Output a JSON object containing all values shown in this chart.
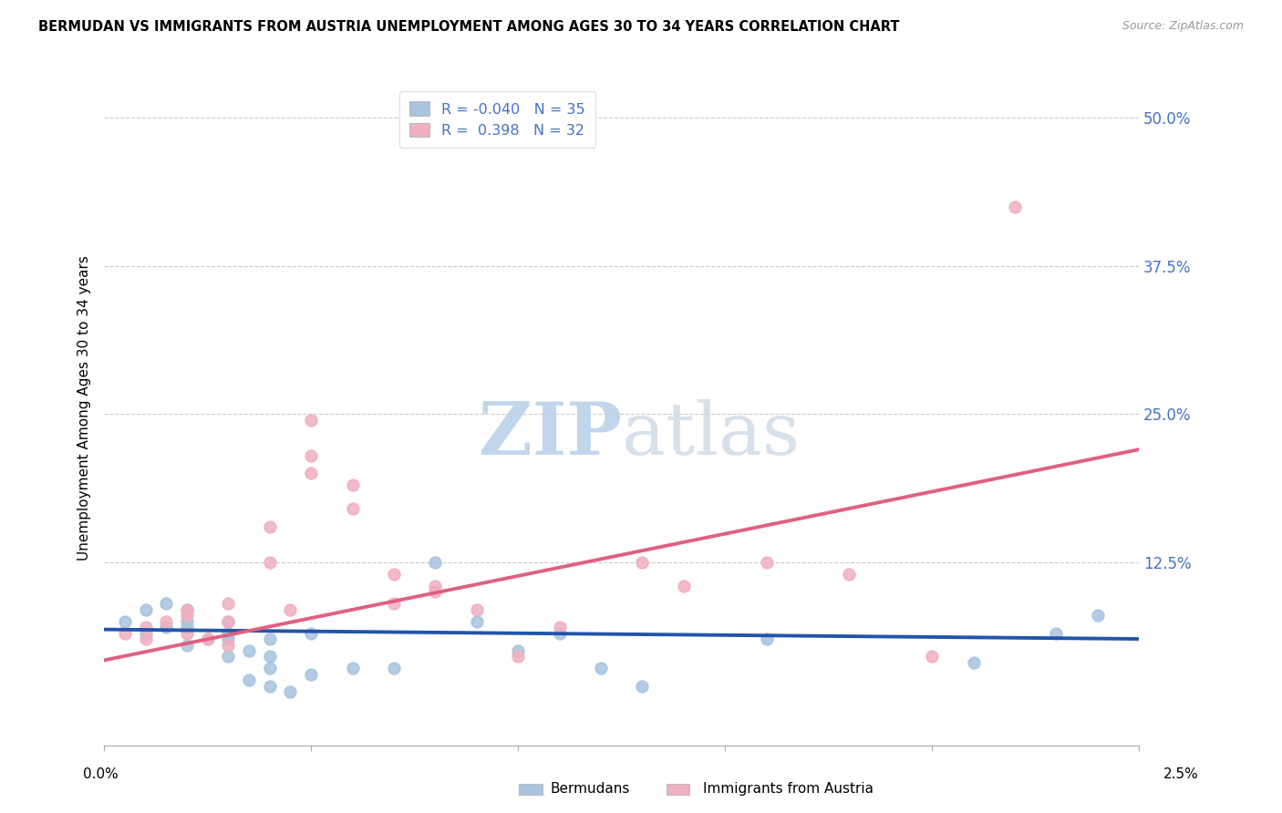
{
  "title": "BERMUDAN VS IMMIGRANTS FROM AUSTRIA UNEMPLOYMENT AMONG AGES 30 TO 34 YEARS CORRELATION CHART",
  "source": "Source: ZipAtlas.com",
  "ylabel": "Unemployment Among Ages 30 to 34 years",
  "ytick_labels": [
    "12.5%",
    "25.0%",
    "37.5%",
    "50.0%"
  ],
  "ytick_values": [
    0.125,
    0.25,
    0.375,
    0.5
  ],
  "xmin": 0.0,
  "xmax": 0.025,
  "ymin": -0.03,
  "ymax": 0.54,
  "bermuda_color": "#a8c4e0",
  "austria_color": "#f0b0c0",
  "bermuda_line_color": "#2255aa",
  "austria_line_color": "#e06080",
  "watermark_color": "#d0dff0",
  "blue_scatter_x": [
    0.0005,
    0.001,
    0.001,
    0.0015,
    0.0015,
    0.002,
    0.002,
    0.002,
    0.002,
    0.0025,
    0.003,
    0.003,
    0.003,
    0.003,
    0.0035,
    0.0035,
    0.004,
    0.004,
    0.004,
    0.004,
    0.0045,
    0.005,
    0.005,
    0.006,
    0.007,
    0.008,
    0.009,
    0.01,
    0.011,
    0.012,
    0.013,
    0.016,
    0.021,
    0.023,
    0.024
  ],
  "blue_scatter_y": [
    0.075,
    0.065,
    0.085,
    0.07,
    0.09,
    0.07,
    0.075,
    0.085,
    0.055,
    0.06,
    0.065,
    0.075,
    0.06,
    0.045,
    0.025,
    0.05,
    0.06,
    0.035,
    0.045,
    0.02,
    0.015,
    0.03,
    0.065,
    0.035,
    0.035,
    0.125,
    0.075,
    0.05,
    0.065,
    0.035,
    0.02,
    0.06,
    0.04,
    0.065,
    0.08
  ],
  "pink_scatter_x": [
    0.0005,
    0.001,
    0.001,
    0.0015,
    0.002,
    0.002,
    0.002,
    0.0025,
    0.003,
    0.003,
    0.003,
    0.004,
    0.004,
    0.0045,
    0.005,
    0.005,
    0.005,
    0.006,
    0.006,
    0.007,
    0.007,
    0.008,
    0.008,
    0.009,
    0.01,
    0.011,
    0.013,
    0.014,
    0.016,
    0.018,
    0.02,
    0.022
  ],
  "pink_scatter_y": [
    0.065,
    0.07,
    0.06,
    0.075,
    0.08,
    0.085,
    0.065,
    0.06,
    0.09,
    0.075,
    0.055,
    0.155,
    0.125,
    0.085,
    0.215,
    0.245,
    0.2,
    0.19,
    0.17,
    0.115,
    0.09,
    0.1,
    0.105,
    0.085,
    0.045,
    0.07,
    0.125,
    0.105,
    0.125,
    0.115,
    0.045,
    0.425
  ],
  "blue_trend_x": [
    0.0,
    0.025
  ],
  "blue_trend_y": [
    0.068,
    0.06
  ],
  "pink_trend_x": [
    0.0,
    0.025
  ],
  "pink_trend_y": [
    0.042,
    0.22
  ]
}
